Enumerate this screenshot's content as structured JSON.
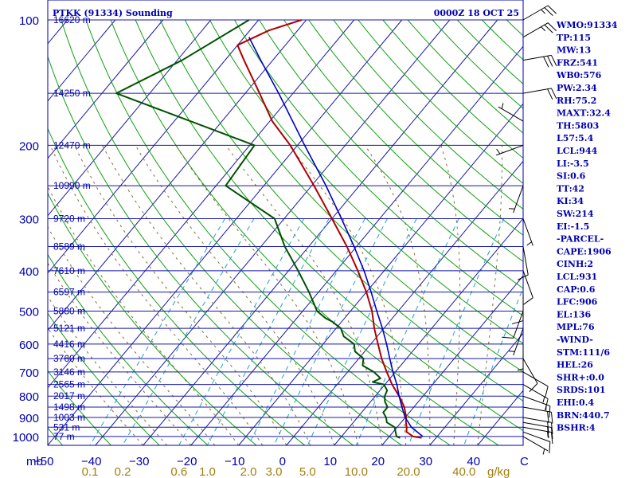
{
  "header": {
    "station": "PTKK (91334) Sounding",
    "time": "0000Z 18 OCT 25"
  },
  "colors": {
    "axis": "#0000b0",
    "isobar": "#1818a8",
    "isotherm": "#1818a8",
    "dry_adiabat": "#10a010",
    "moist_adiabat": "#807030",
    "mixing_ratio": "#20a0d0",
    "temperature": "#b00000",
    "dewpoint": "#005000",
    "parcel": "#0000c0",
    "mixing_label": "#a08010"
  },
  "chart_data": {
    "type": "skew-t",
    "x_axis": {
      "label_prefix": "mb",
      "unit_label": "C",
      "temperature_ticks": [
        "-50",
        "-40",
        "-30",
        "-20",
        "-10",
        "0",
        "10",
        "20",
        "30",
        "40"
      ],
      "xlim_c": [
        -50,
        50
      ]
    },
    "y_axis": {
      "pressure_ticks": [
        "100",
        "200",
        "300",
        "400",
        "500",
        "600",
        "700",
        "800",
        "900",
        "1000"
      ],
      "ylim_mb": [
        1050,
        100
      ]
    },
    "mixing_ratio": {
      "labels": [
        "0.1",
        "0.2",
        "0.6",
        "1.0",
        "2.0",
        "3.0",
        "5.0",
        "10.0",
        "20.0",
        "40.0"
      ],
      "values_gkg": [
        0.1,
        0.2,
        0.6,
        1.0,
        2.0,
        3.0,
        5.0,
        10.0,
        20.0,
        40.0
      ],
      "unit": "g/kg"
    },
    "heights": [
      {
        "p": 100,
        "label": "16620 m"
      },
      {
        "p": 150,
        "label": "14250 m"
      },
      {
        "p": 200,
        "label": "12470 m"
      },
      {
        "p": 250,
        "label": "10990 m"
      },
      {
        "p": 300,
        "label": "9720 m"
      },
      {
        "p": 350,
        "label": "8589 m"
      },
      {
        "p": 400,
        "label": "7610 m"
      },
      {
        "p": 450,
        "label": "6597 m"
      },
      {
        "p": 500,
        "label": "5880 m"
      },
      {
        "p": 550,
        "label": "5121 m"
      },
      {
        "p": 600,
        "label": "4416 m"
      },
      {
        "p": 650,
        "label": "3760 m"
      },
      {
        "p": 700,
        "label": "3146 m"
      },
      {
        "p": 750,
        "label": "2565 m"
      },
      {
        "p": 800,
        "label": "2017 m"
      },
      {
        "p": 850,
        "label": "1498 m"
      },
      {
        "p": 900,
        "label": "1003 m"
      },
      {
        "p": 950,
        "label": "531 m"
      },
      {
        "p": 1000,
        "label": "77 m"
      }
    ],
    "series": [
      {
        "name": "Temperature",
        "points": [
          {
            "p": 1008,
            "t": 27.0
          },
          {
            "p": 1000,
            "t": 25.0
          },
          {
            "p": 975,
            "t": 22.8
          },
          {
            "p": 950,
            "t": 22.0
          },
          {
            "p": 925,
            "t": 21.0
          },
          {
            "p": 900,
            "t": 20.2
          },
          {
            "p": 850,
            "t": 18.0
          },
          {
            "p": 800,
            "t": 15.0
          },
          {
            "p": 750,
            "t": 11.5
          },
          {
            "p": 700,
            "t": 8.2
          },
          {
            "p": 650,
            "t": 4.8
          },
          {
            "p": 600,
            "t": 1.5
          },
          {
            "p": 550,
            "t": -2.0
          },
          {
            "p": 500,
            "t": -5.5
          },
          {
            "p": 450,
            "t": -10.0
          },
          {
            "p": 400,
            "t": -15.5
          },
          {
            "p": 350,
            "t": -22.0
          },
          {
            "p": 300,
            "t": -30.0
          },
          {
            "p": 250,
            "t": -39.5
          },
          {
            "p": 200,
            "t": -51.5
          },
          {
            "p": 175,
            "t": -59.5
          },
          {
            "p": 150,
            "t": -67.0
          },
          {
            "p": 125,
            "t": -76.0
          },
          {
            "p": 115,
            "t": -80.0
          },
          {
            "p": 106,
            "t": -76.0
          },
          {
            "p": 100,
            "t": -71.0
          }
        ]
      },
      {
        "name": "Dewpoint",
        "points": [
          {
            "p": 1008,
            "t": 22.5
          },
          {
            "p": 1000,
            "t": 21.5
          },
          {
            "p": 975,
            "t": 20.5
          },
          {
            "p": 950,
            "t": 19.5
          },
          {
            "p": 925,
            "t": 17.0
          },
          {
            "p": 900,
            "t": 16.0
          },
          {
            "p": 875,
            "t": 14.5
          },
          {
            "p": 850,
            "t": 14.5
          },
          {
            "p": 825,
            "t": 13.0
          },
          {
            "p": 800,
            "t": 12.0
          },
          {
            "p": 775,
            "t": 11.5
          },
          {
            "p": 750,
            "t": 9.8
          },
          {
            "p": 740,
            "t": 7.0
          },
          {
            "p": 725,
            "t": 8.0
          },
          {
            "p": 700,
            "t": 5.5
          },
          {
            "p": 675,
            "t": 2.0
          },
          {
            "p": 650,
            "t": 1.0
          },
          {
            "p": 625,
            "t": -2.0
          },
          {
            "p": 600,
            "t": -3.5
          },
          {
            "p": 575,
            "t": -7.0
          },
          {
            "p": 550,
            "t": -9.0
          },
          {
            "p": 530,
            "t": -12.0
          },
          {
            "p": 520,
            "t": -14.0
          },
          {
            "p": 500,
            "t": -17.0
          },
          {
            "p": 450,
            "t": -22.0
          },
          {
            "p": 400,
            "t": -28.0
          },
          {
            "p": 350,
            "t": -35.0
          },
          {
            "p": 300,
            "t": -42.0
          },
          {
            "p": 250,
            "t": -58.0
          },
          {
            "p": 200,
            "t": -59.0
          },
          {
            "p": 150,
            "t": -97.0
          },
          {
            "p": 125,
            "t": -89.0
          },
          {
            "p": 100,
            "t": -82.0
          }
        ]
      },
      {
        "name": "Parcel",
        "points": [
          {
            "p": 1000,
            "t": 27.0
          },
          {
            "p": 950,
            "t": 23.0
          },
          {
            "p": 900,
            "t": 20.0
          },
          {
            "p": 850,
            "t": 17.5
          },
          {
            "p": 800,
            "t": 15.0
          },
          {
            "p": 750,
            "t": 12.5
          },
          {
            "p": 700,
            "t": 9.5
          },
          {
            "p": 650,
            "t": 6.5
          },
          {
            "p": 600,
            "t": 3.3
          },
          {
            "p": 550,
            "t": -0.3
          },
          {
            "p": 500,
            "t": -4.5
          },
          {
            "p": 450,
            "t": -9.0
          },
          {
            "p": 400,
            "t": -14.2
          },
          {
            "p": 350,
            "t": -20.5
          },
          {
            "p": 300,
            "t": -28.0
          },
          {
            "p": 250,
            "t": -37.0
          },
          {
            "p": 200,
            "t": -48.5
          },
          {
            "p": 150,
            "t": -63.0
          },
          {
            "p": 125,
            "t": -72.5
          },
          {
            "p": 110,
            "t": -79.0
          }
        ]
      }
    ],
    "wind_barbs": [
      {
        "p": 1000,
        "dir": 120,
        "kt": 5
      },
      {
        "p": 975,
        "dir": 110,
        "kt": 10
      },
      {
        "p": 950,
        "dir": 100,
        "kt": 15
      },
      {
        "p": 925,
        "dir": 100,
        "kt": 20
      },
      {
        "p": 900,
        "dir": 100,
        "kt": 20
      },
      {
        "p": 850,
        "dir": 100,
        "kt": 20
      },
      {
        "p": 800,
        "dir": 110,
        "kt": 15
      },
      {
        "p": 750,
        "dir": 120,
        "kt": 15
      },
      {
        "p": 700,
        "dir": 120,
        "kt": 10
      },
      {
        "p": 650,
        "dir": 150,
        "kt": 10
      },
      {
        "p": 600,
        "dir": 180,
        "kt": 5
      },
      {
        "p": 550,
        "dir": 200,
        "kt": 5
      },
      {
        "p": 500,
        "dir": 200,
        "kt": 10
      },
      {
        "p": 450,
        "dir": 180,
        "kt": 10
      },
      {
        "p": 400,
        "dir": 160,
        "kt": 10
      },
      {
        "p": 350,
        "dir": 170,
        "kt": 10
      },
      {
        "p": 300,
        "dir": 160,
        "kt": 5
      },
      {
        "p": 250,
        "dir": 200,
        "kt": 5
      },
      {
        "p": 200,
        "dir": 250,
        "kt": 5
      },
      {
        "p": 175,
        "dir": 300,
        "kt": 5
      },
      {
        "p": 150,
        "dir": 80,
        "kt": 20
      },
      {
        "p": 125,
        "dir": 80,
        "kt": 30
      },
      {
        "p": 110,
        "dir": 60,
        "kt": 25
      },
      {
        "p": 100,
        "dir": 60,
        "kt": 25
      }
    ]
  },
  "indices": [
    "WMO:91334",
    "TP:115",
    "MW:13",
    "FRZ:541",
    "WB0:576",
    "PW:2.34",
    "RH:75.2",
    "MAXT:32.4",
    "TH:5803",
    "L57:5.4",
    "LCL:944",
    "LI:-3.5",
    "SI:0.6",
    "TT:42",
    "KI:34",
    "SW:214",
    "EI:-1.5",
    "-PARCEL-",
    "CAPE:1906",
    "CINH:2",
    "LCL:931",
    "CAP:0.6",
    "LFC:906",
    "EL:136",
    "MPL:76",
    "-WIND-",
    "STM:111/6",
    "HEL:26",
    "SHR+:0.0",
    "SRDS:101",
    "EHI:0.4",
    "BRN:440.7",
    "BSHR:4"
  ]
}
